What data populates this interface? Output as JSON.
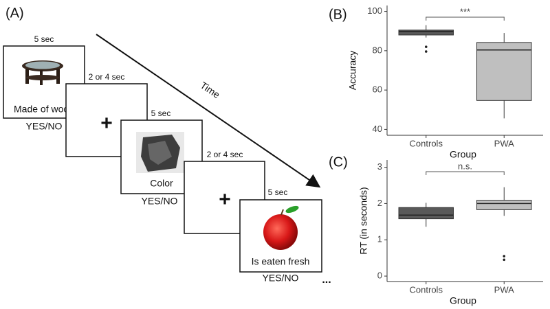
{
  "panel_a": {
    "label": "(A)",
    "time_label": "Time",
    "ellipsis": "...",
    "frames": [
      {
        "duration": "5 sec",
        "caption": "Made of wood",
        "response": "YES/NO"
      },
      {
        "duration": "2 or 4 sec",
        "symbol": "+"
      },
      {
        "duration": "5 sec",
        "caption": "Color",
        "response": "YES/NO"
      },
      {
        "duration": "2 or 4 sec",
        "symbol": "+"
      },
      {
        "duration": "5 sec",
        "caption": "Is eaten fresh",
        "response": "YES/NO"
      }
    ]
  },
  "chart_data": [
    {
      "type": "box",
      "panel_label": "(B)",
      "x_label": "Group",
      "y_label": "Accuracy",
      "ylim": [
        37,
        103
      ],
      "yticks": [
        40,
        60,
        80,
        100
      ],
      "significance": "***",
      "series": [
        {
          "name": "Controls",
          "color": "#595959",
          "whisker_low": 86.7,
          "q1": 88,
          "median": 89.8,
          "q3": 90.5,
          "whisker_high": 93,
          "outliers": [
            82,
            79.6
          ]
        },
        {
          "name": "PWA",
          "color": "#bfbfbf",
          "whisker_low": 45.6,
          "q1": 54.7,
          "median": 80.4,
          "q3": 84.2,
          "whisker_high": 89,
          "outliers": []
        }
      ]
    },
    {
      "type": "box",
      "panel_label": "(C)",
      "x_label": "Group",
      "y_label": "RT (in seconds)",
      "ylim": [
        -0.15,
        3.2
      ],
      "yticks": [
        0,
        1,
        2,
        3
      ],
      "significance": "n.s.",
      "series": [
        {
          "name": "Controls",
          "color": "#595959",
          "whisker_low": 1.36,
          "q1": 1.58,
          "median": 1.68,
          "q3": 1.89,
          "whisker_high": 2.02,
          "outliers": []
        },
        {
          "name": "PWA",
          "color": "#bfbfbf",
          "whisker_low": 1.66,
          "q1": 1.83,
          "median": 2.0,
          "q3": 2.09,
          "whisker_high": 2.45,
          "outliers": [
            0.55,
            0.45
          ]
        }
      ]
    }
  ]
}
